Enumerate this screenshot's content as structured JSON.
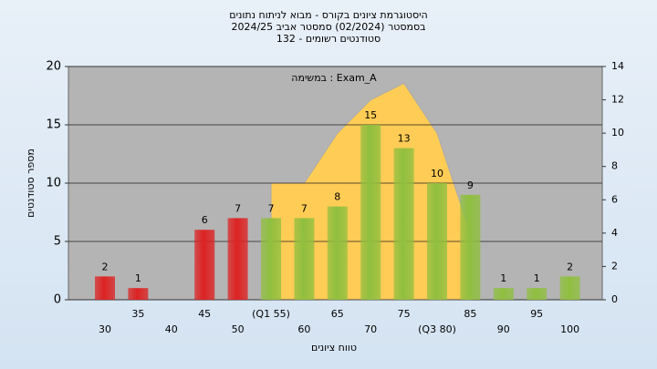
{
  "chart_data": {
    "type": "bar",
    "title": [
      "היסטוגרמת ציונים בקורס - מבוא לניתוח נתונים",
      "בסמסטר (02/2024) סמסטר אביב 2024/25",
      "סטודנטים רשומים - 132"
    ],
    "annotation": "Exam_A : במשימה",
    "x_label": "טווח ציונים",
    "y_label": "מספר סטודנטים",
    "categories": [
      "30",
      "35",
      "40",
      "45",
      "50",
      "(Q1 55)",
      "60",
      "65",
      "70",
      "75",
      "(Q3 80)",
      "85",
      "90",
      "95",
      "100"
    ],
    "values": [
      2,
      1,
      null,
      6,
      7,
      7,
      7,
      8,
      15,
      13,
      10,
      9,
      1,
      1,
      2
    ],
    "colors": [
      "#dd2222",
      "#dd2222",
      "#dd2222",
      "#dd2222",
      "#dd2222",
      "#8fbf3f",
      "#8fbf3f",
      "#8fbf3f",
      "#8fbf3f",
      "#8fbf3f",
      "#8fbf3f",
      "#8fbf3f",
      "#8fbf3f",
      "#8fbf3f",
      "#8fbf3f"
    ],
    "area": {
      "x": [
        55,
        60,
        65,
        70,
        75,
        80,
        85
      ],
      "values": [
        7,
        7,
        10,
        12,
        13,
        10,
        4
      ],
      "color": "#ffcc55",
      "axis": "y2"
    },
    "ylim": [
      0,
      20
    ],
    "yticks": [
      0,
      5,
      10,
      15,
      20
    ],
    "y2lim": [
      0,
      14
    ],
    "y2ticks": [
      0,
      2,
      4,
      6,
      8,
      10,
      12,
      14
    ],
    "grid": true
  }
}
